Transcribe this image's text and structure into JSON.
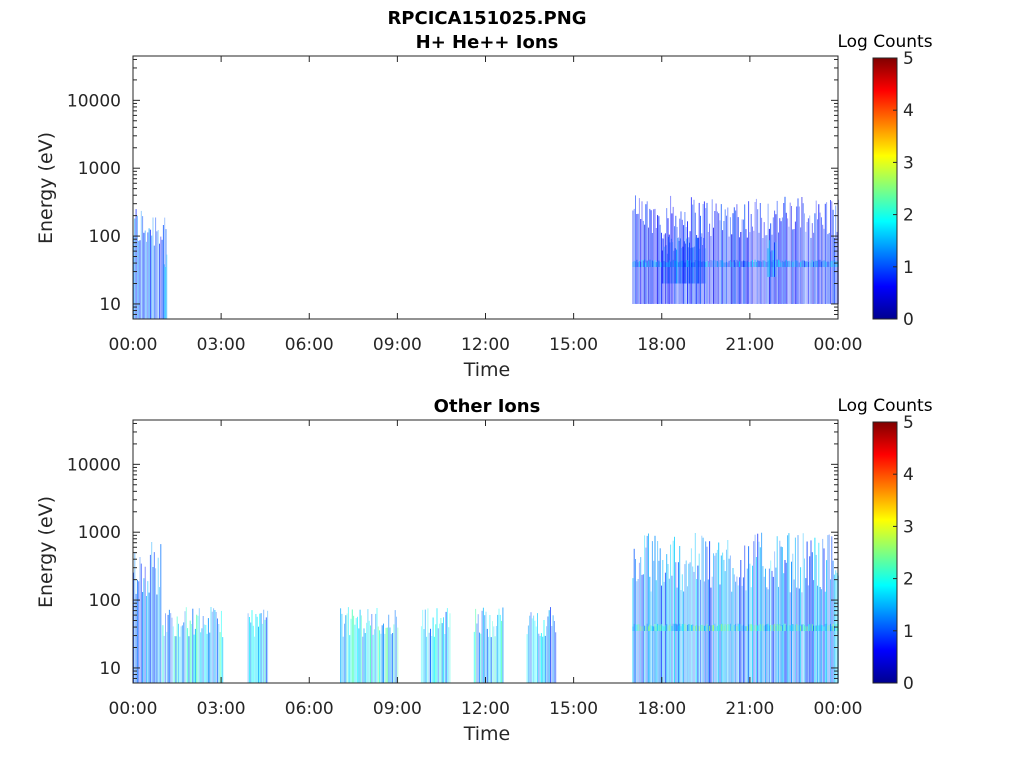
{
  "figure_title": "RPCICA151025.PNG",
  "chart_data": [
    {
      "type": "heatmap",
      "title": "H+ He++ Ions",
      "xlabel": "Time",
      "ylabel": "Energy (eV)",
      "x_ticks": [
        "00:00",
        "03:00",
        "06:00",
        "09:00",
        "12:00",
        "15:00",
        "18:00",
        "21:00",
        "00:00"
      ],
      "x_range_hours": [
        0,
        24
      ],
      "y_scale": "log",
      "y_ticks": [
        "10",
        "100",
        "1000",
        "10000"
      ],
      "y_range": [
        6,
        45000
      ],
      "colorbar": {
        "label": "Log Counts",
        "ticks": [
          "0",
          "1",
          "2",
          "3",
          "4",
          "5"
        ],
        "range": [
          0,
          5
        ],
        "colormap": "jet"
      },
      "regions": [
        {
          "t_start": 0.0,
          "t_end": 1.15,
          "e_min": 6,
          "e_max": 300,
          "level": 0.6
        },
        {
          "t_start": 1.05,
          "t_end": 1.15,
          "e_min": 6,
          "e_max": 80,
          "level": 0.8
        },
        {
          "t_start": 17.0,
          "t_end": 24.0,
          "e_min": 10,
          "e_max": 400,
          "level": 0.4
        },
        {
          "t_start": 17.0,
          "t_end": 24.0,
          "e_min": 35,
          "e_max": 45,
          "level": 0.8
        },
        {
          "t_start": 18.0,
          "t_end": 19.5,
          "e_min": 20,
          "e_max": 100,
          "level": 0.6
        },
        {
          "t_start": 21.6,
          "t_end": 21.9,
          "e_min": 25,
          "e_max": 100,
          "level": 0.9
        }
      ]
    },
    {
      "type": "heatmap",
      "title": "Other Ions",
      "xlabel": "Time",
      "ylabel": "Energy (eV)",
      "x_ticks": [
        "00:00",
        "03:00",
        "06:00",
        "09:00",
        "12:00",
        "15:00",
        "18:00",
        "21:00",
        "00:00"
      ],
      "x_range_hours": [
        0,
        24
      ],
      "y_scale": "log",
      "y_ticks": [
        "10",
        "100",
        "1000",
        "10000"
      ],
      "y_range": [
        6,
        45000
      ],
      "colorbar": {
        "label": "Log Counts",
        "ticks": [
          "0",
          "1",
          "2",
          "3",
          "4",
          "5"
        ],
        "range": [
          0,
          5
        ],
        "colormap": "jet"
      },
      "regions": [
        {
          "t_start": 0.0,
          "t_end": 0.95,
          "e_min": 6,
          "e_max": 800,
          "level": 0.7
        },
        {
          "t_start": 1.0,
          "t_end": 3.05,
          "e_min": 6,
          "e_max": 80,
          "level": 1.1
        },
        {
          "t_start": 3.9,
          "t_end": 4.6,
          "e_min": 6,
          "e_max": 80,
          "level": 1.0
        },
        {
          "t_start": 7.05,
          "t_end": 9.0,
          "e_min": 6,
          "e_max": 80,
          "level": 1.2
        },
        {
          "t_start": 9.8,
          "t_end": 10.8,
          "e_min": 6,
          "e_max": 80,
          "level": 1.0
        },
        {
          "t_start": 11.6,
          "t_end": 12.6,
          "e_min": 6,
          "e_max": 80,
          "level": 1.1
        },
        {
          "t_start": 13.4,
          "t_end": 14.4,
          "e_min": 6,
          "e_max": 80,
          "level": 0.9
        },
        {
          "t_start": 17.0,
          "t_end": 24.0,
          "e_min": 6,
          "e_max": 1000,
          "level": 0.8
        },
        {
          "t_start": 17.0,
          "t_end": 24.0,
          "e_min": 35,
          "e_max": 45,
          "level": 1.3
        }
      ]
    }
  ]
}
